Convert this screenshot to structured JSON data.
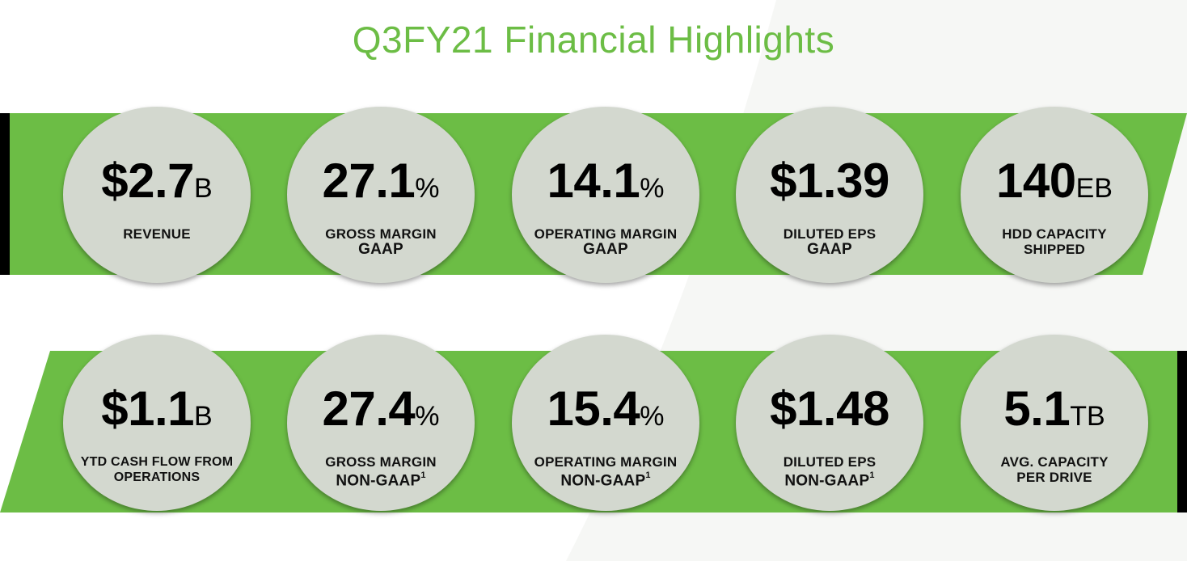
{
  "title": "Q3FY21 Financial Highlights",
  "colors": {
    "green": "#6cbd45",
    "circle": "#d3d8cf",
    "accent_bar": "#000000"
  },
  "top_row": [
    {
      "value": "$2.7",
      "unit": "B",
      "label1": "REVENUE",
      "label2": "",
      "note": ""
    },
    {
      "value": "27.1",
      "unit": "%",
      "label1": "GROSS MARGIN",
      "label2": "GAAP",
      "note": ""
    },
    {
      "value": "14.1",
      "unit": "%",
      "label1": "OPERATING MARGIN",
      "label2": "GAAP",
      "note": ""
    },
    {
      "value": "$1.39",
      "unit": "",
      "label1": "DILUTED EPS",
      "label2": "GAAP",
      "note": ""
    },
    {
      "value": "140",
      "unit": "EB",
      "label1": "HDD CAPACITY",
      "label2": "SHIPPED",
      "note": ""
    }
  ],
  "bottom_row": [
    {
      "value": "$1.1",
      "unit": "B",
      "label1": "YTD CASH FLOW FROM",
      "label2": "OPERATIONS",
      "note": ""
    },
    {
      "value": "27.4",
      "unit": "%",
      "label1": "GROSS MARGIN",
      "label2": "NON-GAAP",
      "note": "1"
    },
    {
      "value": "15.4",
      "unit": "%",
      "label1": "OPERATING MARGIN",
      "label2": "NON-GAAP",
      "note": "1"
    },
    {
      "value": "$1.48",
      "unit": "",
      "label1": "DILUTED EPS",
      "label2": "NON-GAAP",
      "note": "1"
    },
    {
      "value": "5.1",
      "unit": "TB",
      "label1": "AVG. CAPACITY",
      "label2": "PER DRIVE",
      "note": ""
    }
  ]
}
